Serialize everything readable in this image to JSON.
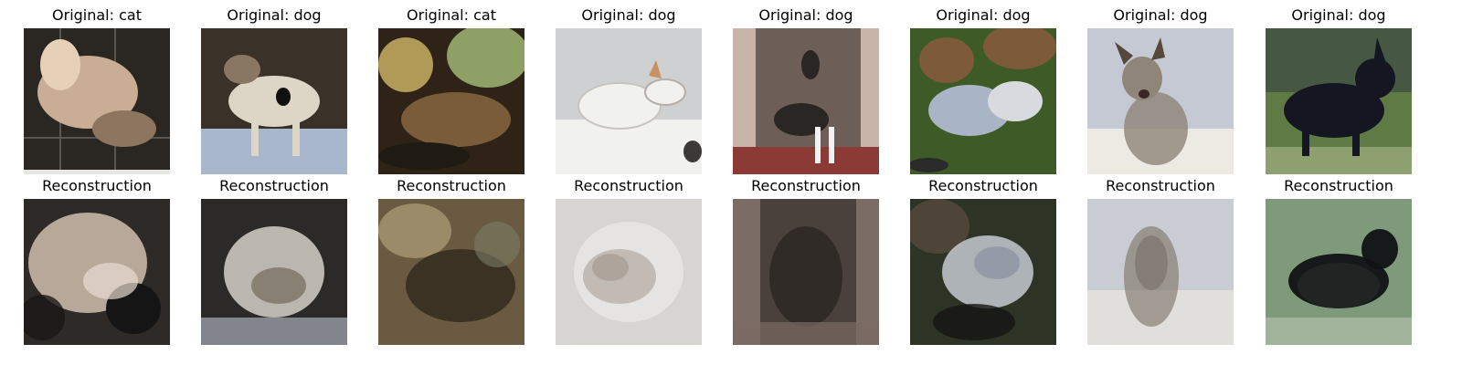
{
  "panels": [
    {
      "title_prefix": "Original: ",
      "label": "cat",
      "recon_title": "Reconstruction",
      "orig_colors": [
        "#2a2622",
        "#c9ad94",
        "#8d7560",
        "#e6d0b8"
      ],
      "recon_colors": [
        "#2d2a27",
        "#c8b6a6",
        "#9b8878",
        "#e8dcd0"
      ]
    },
    {
      "title_prefix": "Original: ",
      "label": "dog",
      "recon_title": "Reconstruction",
      "orig_colors": [
        "#3a3228",
        "#ddd6c6",
        "#8a7763",
        "#a8b7cc"
      ],
      "recon_colors": [
        "#2c2a28",
        "#d5d0c8",
        "#7d7265",
        "#a7adb7"
      ]
    },
    {
      "title_prefix": "Original: ",
      "label": "cat",
      "recon_title": "Reconstruction",
      "orig_colors": [
        "#2e2316",
        "#7a5c3a",
        "#b19a58",
        "#8fa067"
      ],
      "recon_colors": [
        "#2f281c",
        "#6b5a42",
        "#a89772",
        "#7c7b66"
      ]
    },
    {
      "title_prefix": "Original: ",
      "label": "dog",
      "recon_title": "Reconstruction",
      "orig_colors": [
        "#cfd0d2",
        "#f1f1f0",
        "#b7b2aa",
        "#c69262"
      ],
      "recon_colors": [
        "#d7d5d2",
        "#efeeec",
        "#b3aaa2",
        "#9a8e84"
      ]
    },
    {
      "title_prefix": "Original: ",
      "label": "dog",
      "recon_title": "Reconstruction",
      "orig_colors": [
        "#6d5e57",
        "#c8b4a8",
        "#2a2624",
        "#8b3a35"
      ],
      "recon_colors": [
        "#4a413c",
        "#9c8a80",
        "#2b2623",
        "#7a6a62"
      ]
    },
    {
      "title_prefix": "Original: ",
      "label": "dog",
      "recon_title": "Reconstruction",
      "orig_colors": [
        "#3e5b27",
        "#a9b4c4",
        "#d7dbe0",
        "#7d5a3a"
      ],
      "recon_colors": [
        "#2d3426",
        "#8d95a2",
        "#c5cad2",
        "#5c4c3e"
      ]
    },
    {
      "title_prefix": "Original: ",
      "label": "dog",
      "recon_title": "Reconstruction",
      "orig_colors": [
        "#c4c9d4",
        "#ede9e3",
        "#8f8578",
        "#56483b"
      ],
      "recon_colors": [
        "#c9ccd2",
        "#e6e3df",
        "#877d74",
        "#6f665f"
      ]
    },
    {
      "title_prefix": "Original: ",
      "label": "dog",
      "recon_title": "Reconstruction",
      "orig_colors": [
        "#5f7a45",
        "#141622",
        "#2d3542",
        "#8ea070"
      ],
      "recon_colors": [
        "#7f9a7a",
        "#101214",
        "#2c3230",
        "#a1b39a"
      ]
    }
  ]
}
